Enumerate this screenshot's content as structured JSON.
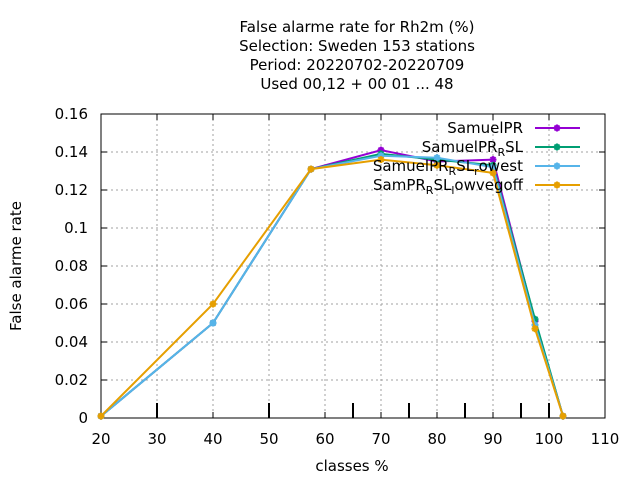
{
  "chart_data": {
    "type": "line",
    "title_lines": [
      "False alarme rate  for Rh2m (%)",
      "Selection: Sweden    153 stations",
      "Period: 20220702-20220709",
      "Used  00,12  + 00 01 ... 48"
    ],
    "xlabel": "classes %",
    "ylabel": "False alarme rate",
    "xlim": [
      20,
      110
    ],
    "ylim": [
      0,
      0.16
    ],
    "xticks": [
      "20",
      "30",
      "40",
      "50",
      "60",
      "70",
      "80",
      "90",
      "100",
      "110"
    ],
    "yticks": [
      "0",
      "0.02",
      "0.04",
      "0.06",
      "0.08",
      "0.1",
      "0.12",
      "0.14",
      "0.16"
    ],
    "grid": true,
    "legend_position": "top-right",
    "series": [
      {
        "name": "SamuelPR",
        "color": "#9400d3",
        "x": [
          20,
          40,
          57.5,
          70,
          80,
          90,
          97.5,
          102.5
        ],
        "y": [
          0.001,
          0.05,
          0.131,
          0.141,
          0.135,
          0.136,
          0.051,
          0.001
        ]
      },
      {
        "name": "SamuelPR_RSL",
        "color": "#009e73",
        "x": [
          20,
          40,
          57.5,
          70,
          80,
          90,
          97.5,
          102.5
        ],
        "y": [
          0.001,
          0.05,
          0.131,
          0.139,
          0.136,
          0.133,
          0.052,
          0.001
        ]
      },
      {
        "name": "SamuelPR_RSL_rowest",
        "color": "#56b4e9",
        "x": [
          20,
          40,
          57.5,
          70,
          80,
          90,
          97.5,
          102.5
        ],
        "y": [
          0.001,
          0.05,
          0.131,
          0.138,
          0.137,
          0.132,
          0.049,
          0.001
        ]
      },
      {
        "name": "SamPR_RSL_lowvegoff",
        "color": "#e69f00",
        "x": [
          20,
          40,
          57.5,
          70,
          80,
          90,
          97.5,
          102.5
        ],
        "y": [
          0.001,
          0.06,
          0.131,
          0.136,
          0.133,
          0.129,
          0.047,
          0.001
        ]
      }
    ],
    "marker_ticks_x": [
      30,
      50,
      65,
      75,
      85,
      95,
      100
    ]
  }
}
